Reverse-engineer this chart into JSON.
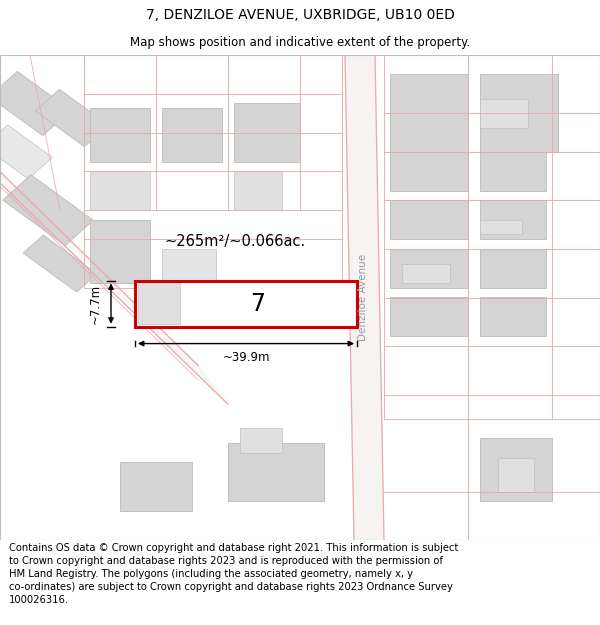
{
  "title_line1": "7, DENZILOE AVENUE, UXBRIDGE, UB10 0ED",
  "title_line2": "Map shows position and indicative extent of the property.",
  "title_fontsize": 10,
  "subtitle_fontsize": 8.5,
  "footer_text": "Contains OS data © Crown copyright and database right 2021. This information is subject\nto Crown copyright and database rights 2023 and is reproduced with the permission of\nHM Land Registry. The polygons (including the associated geometry, namely x, y\nco-ordinates) are subject to Crown copyright and database rights 2023 Ordnance Survey\n100026316.",
  "footer_fontsize": 7.2,
  "map_bg": "#f9f9f9",
  "road_line_color": "#e8aaaa",
  "plot_outline_color": "#cc0000",
  "plot_fill": "#ffffff",
  "building_fill": "#d4d4d4",
  "building_outline": "#c0c0c0",
  "parcel_line_color": "#e8aaaa",
  "street_label": "Denziloe Avenue",
  "area_label": "~265m²/~0.066ac.",
  "width_label": "~39.9m",
  "height_label": "~7.7m",
  "plot_number": "7"
}
